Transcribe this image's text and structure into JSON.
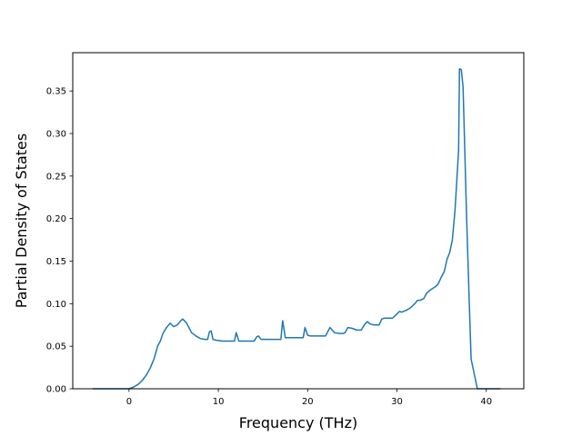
{
  "chart_data": {
    "type": "line",
    "title": "",
    "xlabel": "Frequency (THz)",
    "ylabel": "Partial Density of States",
    "xlim": [
      -6.3,
      44.2
    ],
    "ylim": [
      0.0,
      0.395
    ],
    "xticks": [
      0,
      10,
      20,
      30,
      40
    ],
    "xtick_labels": [
      "0",
      "10",
      "20",
      "30",
      "40"
    ],
    "yticks": [
      0.0,
      0.05,
      0.1,
      0.15,
      0.2,
      0.25,
      0.3,
      0.35
    ],
    "ytick_labels": [
      "0.00",
      "0.05",
      "0.10",
      "0.15",
      "0.20",
      "0.25",
      "0.30",
      "0.35"
    ],
    "grid": false,
    "line_color": "#1f77b4",
    "series": [
      {
        "x": [
          -4.0,
          -3.0,
          -2.0,
          -1.0,
          0.0,
          0.5,
          1.0,
          1.5,
          2.0,
          2.4,
          2.8,
          3.2,
          3.5,
          3.8,
          4.2,
          4.6,
          5.0,
          5.4,
          5.8,
          6.0,
          6.2,
          6.4,
          6.7,
          7.0,
          7.5,
          8.0,
          8.5,
          8.8,
          9.0,
          9.2,
          9.4,
          9.8,
          10.5,
          11.0,
          11.5,
          11.8,
          12.0,
          12.3,
          13.0,
          13.5,
          14.0,
          14.3,
          14.5,
          14.8,
          15.5,
          16.0,
          16.5,
          17.0,
          17.2,
          17.5,
          18.0,
          18.5,
          19.0,
          19.5,
          19.7,
          20.0,
          20.3,
          21.0,
          21.5,
          22.0,
          22.2,
          22.5,
          23.0,
          23.5,
          24.0,
          24.2,
          24.5,
          25.0,
          25.5,
          26.0,
          26.4,
          26.7,
          27.0,
          27.5,
          28.0,
          28.3,
          28.6,
          29.0,
          29.5,
          30.0,
          30.3,
          30.5,
          31.0,
          31.5,
          32.0,
          32.3,
          32.6,
          33.0,
          33.3,
          33.6,
          34.0,
          34.3,
          34.6,
          35.0,
          35.3,
          35.6,
          35.9,
          36.2,
          36.5,
          36.7,
          36.9,
          37.0,
          37.2,
          37.4,
          37.8,
          38.1,
          38.3,
          39.0,
          40.0,
          41.0,
          41.5
        ],
        "y": [
          0.0,
          0.0,
          0.0,
          0.0,
          0.0,
          0.002,
          0.005,
          0.01,
          0.017,
          0.025,
          0.035,
          0.05,
          0.056,
          0.065,
          0.072,
          0.077,
          0.073,
          0.075,
          0.08,
          0.082,
          0.08,
          0.078,
          0.072,
          0.066,
          0.062,
          0.059,
          0.058,
          0.058,
          0.067,
          0.068,
          0.058,
          0.057,
          0.056,
          0.056,
          0.056,
          0.056,
          0.066,
          0.056,
          0.056,
          0.056,
          0.056,
          0.061,
          0.062,
          0.058,
          0.058,
          0.058,
          0.058,
          0.058,
          0.08,
          0.06,
          0.06,
          0.06,
          0.06,
          0.06,
          0.072,
          0.063,
          0.062,
          0.062,
          0.062,
          0.062,
          0.066,
          0.072,
          0.066,
          0.065,
          0.065,
          0.066,
          0.072,
          0.071,
          0.069,
          0.069,
          0.076,
          0.079,
          0.076,
          0.075,
          0.075,
          0.082,
          0.083,
          0.083,
          0.083,
          0.088,
          0.091,
          0.09,
          0.092,
          0.095,
          0.1,
          0.104,
          0.104,
          0.106,
          0.112,
          0.115,
          0.118,
          0.12,
          0.123,
          0.132,
          0.138,
          0.152,
          0.16,
          0.175,
          0.21,
          0.245,
          0.28,
          0.376,
          0.375,
          0.355,
          0.2,
          0.1,
          0.035,
          0.0,
          0.0,
          0.0,
          0.0
        ]
      }
    ]
  }
}
